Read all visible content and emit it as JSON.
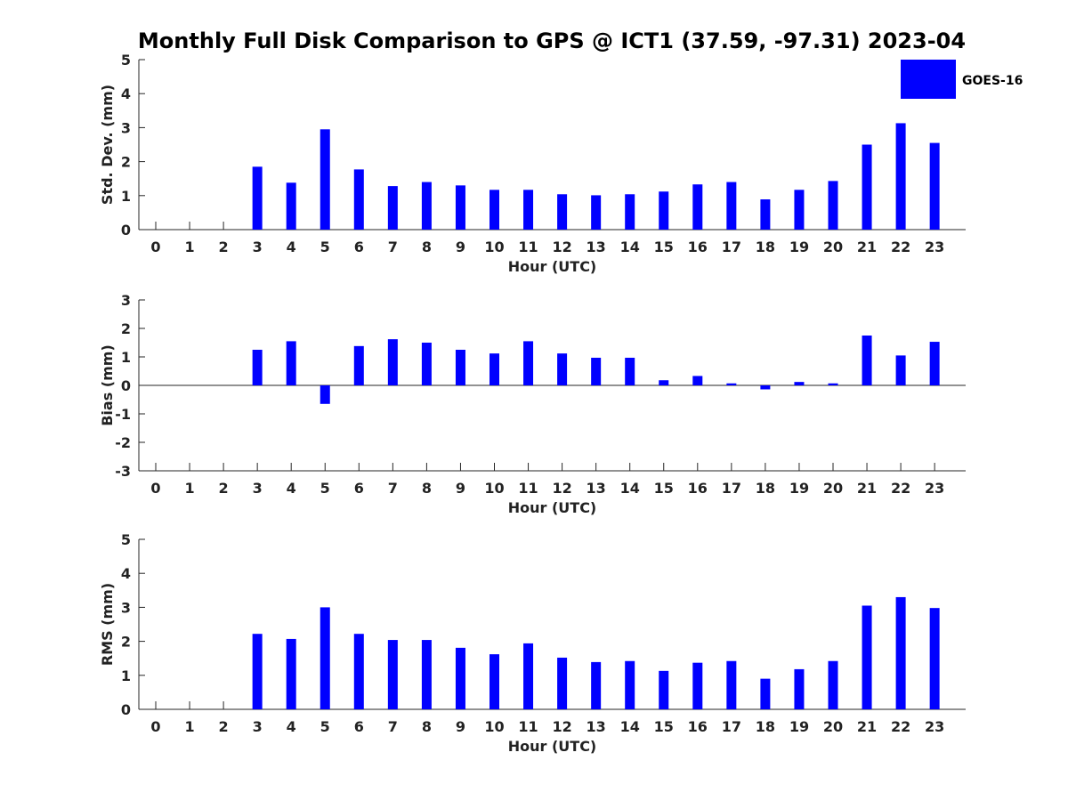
{
  "title": "Monthly Full Disk Comparison to GPS @ ICT1 (37.59, -97.31) 2023-04",
  "legend": {
    "label": "GOES-16",
    "color": "#0000ff",
    "placement": "top-right"
  },
  "chart_data": [
    {
      "type": "bar",
      "categories": [
        "0",
        "1",
        "2",
        "3",
        "4",
        "5",
        "6",
        "7",
        "8",
        "9",
        "10",
        "11",
        "12",
        "13",
        "14",
        "15",
        "16",
        "17",
        "18",
        "19",
        "20",
        "21",
        "22",
        "23"
      ],
      "series": [
        {
          "name": "GOES-16",
          "values": [
            null,
            null,
            null,
            1.85,
            1.38,
            2.95,
            1.77,
            1.28,
            1.4,
            1.3,
            1.17,
            1.17,
            1.04,
            1.01,
            1.04,
            1.12,
            1.33,
            1.4,
            0.89,
            1.17,
            1.43,
            2.5,
            3.13,
            2.55
          ],
          "color": "#0000ff"
        }
      ],
      "xlabel": "Hour (UTC)",
      "ylabel": "Std. Dev. (mm)",
      "ylim": [
        0,
        5
      ],
      "yticks": [
        "0",
        "1",
        "2",
        "3",
        "4",
        "5"
      ],
      "grid": false
    },
    {
      "type": "bar",
      "categories": [
        "0",
        "1",
        "2",
        "3",
        "4",
        "5",
        "6",
        "7",
        "8",
        "9",
        "10",
        "11",
        "12",
        "13",
        "14",
        "15",
        "16",
        "17",
        "18",
        "19",
        "20",
        "21",
        "22",
        "23"
      ],
      "series": [
        {
          "name": "GOES-16",
          "values": [
            null,
            null,
            null,
            1.25,
            1.55,
            -0.65,
            1.38,
            1.62,
            1.5,
            1.25,
            1.12,
            1.55,
            1.12,
            0.97,
            0.97,
            0.18,
            0.33,
            0.07,
            -0.14,
            0.12,
            0.07,
            1.75,
            1.05,
            1.53
          ],
          "color": "#0000ff"
        }
      ],
      "xlabel": "Hour (UTC)",
      "ylabel": "Bias (mm)",
      "ylim": [
        -3,
        3
      ],
      "yticks": [
        "-3",
        "-2",
        "-1",
        "0",
        "1",
        "2",
        "3"
      ],
      "zero_line": true,
      "grid": false
    },
    {
      "type": "bar",
      "categories": [
        "0",
        "1",
        "2",
        "3",
        "4",
        "5",
        "6",
        "7",
        "8",
        "9",
        "10",
        "11",
        "12",
        "13",
        "14",
        "15",
        "16",
        "17",
        "18",
        "19",
        "20",
        "21",
        "22",
        "23"
      ],
      "series": [
        {
          "name": "GOES-16",
          "values": [
            null,
            null,
            null,
            2.22,
            2.07,
            3.0,
            2.22,
            2.04,
            2.04,
            1.81,
            1.62,
            1.94,
            1.52,
            1.39,
            1.42,
            1.13,
            1.37,
            1.42,
            0.9,
            1.18,
            1.42,
            3.05,
            3.3,
            2.98
          ],
          "color": "#0000ff"
        }
      ],
      "xlabel": "Hour (UTC)",
      "ylabel": "RMS (mm)",
      "ylim": [
        0,
        5
      ],
      "yticks": [
        "0",
        "1",
        "2",
        "3",
        "4",
        "5"
      ],
      "grid": false
    }
  ]
}
